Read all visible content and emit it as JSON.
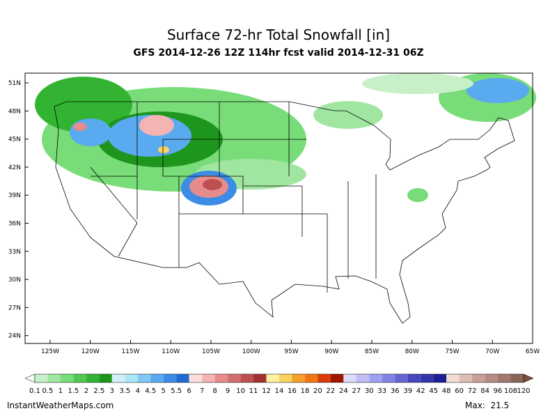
{
  "title": "Surface 72-hr Total Snowfall [in]",
  "subtitle": "GFS 2014-12-26 12Z 114hr fcst valid 2014-12-31 06Z",
  "latitude_labels": [
    "51N",
    "48N",
    "45N",
    "42N",
    "39N",
    "36N",
    "33N",
    "30N",
    "27N",
    "24N"
  ],
  "longitude_labels": [
    "125W",
    "120W",
    "115W",
    "110W",
    "105W",
    "100W",
    "95W",
    "90W",
    "85W",
    "80W",
    "75W",
    "70W",
    "65W"
  ],
  "colorbar": {
    "labels": [
      "0.1",
      "0.5",
      "1",
      "1.5",
      "2",
      "2.5",
      "3",
      "3.5",
      "4",
      "4.5",
      "5",
      "5.5",
      "6",
      "7",
      "8",
      "9",
      "10",
      "11",
      "12",
      "14",
      "16",
      "18",
      "20",
      "22",
      "24",
      "27",
      "30",
      "33",
      "36",
      "39",
      "42",
      "45",
      "48",
      "60",
      "72",
      "84",
      "96",
      "108",
      "120"
    ],
    "colors": [
      "#c8f0c8",
      "#a0e6a0",
      "#78dc78",
      "#50c850",
      "#32b432",
      "#1e961e",
      "#d2f0fa",
      "#aae6fa",
      "#82c8f5",
      "#5aaaf0",
      "#3c8ce6",
      "#1e6ed2",
      "#fadcdc",
      "#f5b4b4",
      "#e68c8c",
      "#d26e6e",
      "#be5050",
      "#a03232",
      "#fff0a0",
      "#fad264",
      "#f5a028",
      "#f07814",
      "#dc3c0a",
      "#a01400",
      "#dcdcfa",
      "#bebef5",
      "#a0a0f0",
      "#8282e6",
      "#6464d2",
      "#4646be",
      "#3232aa",
      "#1e1e96",
      "#f0dcd2",
      "#dcbeb4",
      "#c8a096",
      "#b48c82",
      "#a0786e",
      "#8c6455"
    ]
  },
  "footer": {
    "source": "InstantWeatherMaps.com",
    "max": "Max:  21.5"
  }
}
